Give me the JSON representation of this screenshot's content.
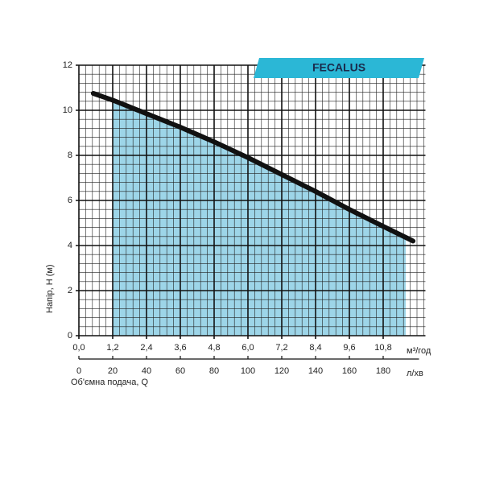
{
  "chart_data": {
    "type": "line",
    "badge": "FECALUS",
    "ylabel": "Напір, H (м)",
    "xlabel_unit": "м³/год",
    "x2label_unit": "л/хв",
    "x2label": "Об'ємна подача, Q",
    "x": [
      0.51,
      1.2,
      2.4,
      3.6,
      4.8,
      6.0,
      7.2,
      8.4,
      9.6,
      10.8,
      11.86
    ],
    "series": [
      {
        "name": "FECALUS",
        "color": "#111111",
        "values": [
          10.75,
          10.45,
          9.85,
          9.25,
          8.6,
          7.9,
          7.15,
          6.4,
          5.6,
          4.85,
          4.2
        ]
      }
    ],
    "shaded_range": [
      1.2,
      11.6
    ],
    "shade_color": "#9dd5e8",
    "xlim": [
      0,
      12.3
    ],
    "xticks": [
      {
        "value": 0,
        "label": "0,0"
      },
      {
        "value": 1.2,
        "label": "1,2"
      },
      {
        "value": 2.4,
        "label": "2,4"
      },
      {
        "value": 3.6,
        "label": "3,6"
      },
      {
        "value": 4.8,
        "label": "4,8"
      },
      {
        "value": 6.0,
        "label": "6,0"
      },
      {
        "value": 7.2,
        "label": "7,2"
      },
      {
        "value": 8.4,
        "label": "8,4"
      },
      {
        "value": 9.6,
        "label": "9,6"
      },
      {
        "value": 10.8,
        "label": "10,8"
      }
    ],
    "x2lim": [
      0,
      205
    ],
    "x2ticks": [
      0,
      20,
      40,
      60,
      80,
      100,
      120,
      140,
      160,
      180
    ],
    "ylim": [
      0,
      12
    ],
    "yticks": [
      0,
      2,
      4,
      6,
      8,
      10,
      12
    ],
    "minor_grid": {
      "x": 0.24,
      "y": 0.4
    },
    "grid": true
  }
}
